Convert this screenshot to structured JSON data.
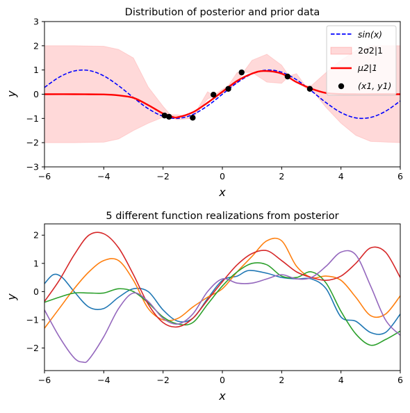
{
  "chart_data": [
    {
      "type": "line",
      "title": "Distribution of posterior and prior data",
      "xlabel": "x",
      "ylabel": "y",
      "xlim": [
        -6,
        6
      ],
      "ylim": [
        -3,
        3
      ],
      "xticks": [
        -6,
        -4,
        -2,
        0,
        2,
        4,
        6
      ],
      "yticks": [
        -3,
        -2,
        -1,
        0,
        1,
        2,
        3
      ],
      "legend_position": "top-right",
      "series": [
        {
          "name": "sin(x)",
          "kind": "dashed-line",
          "color": "#0000ff",
          "x": [
            -6,
            -5.5,
            -5,
            -4.5,
            -4,
            -3.5,
            -3,
            -2.5,
            -2,
            -1.5,
            -1,
            -0.5,
            0,
            0.5,
            1,
            1.5,
            2,
            2.5,
            3,
            3.5,
            4,
            4.5,
            5,
            5.5,
            6
          ],
          "y": [
            0.279,
            0.706,
            0.959,
            0.978,
            0.757,
            0.351,
            -0.141,
            -0.598,
            -0.909,
            -0.997,
            -0.841,
            -0.479,
            0,
            0.479,
            0.841,
            0.997,
            0.909,
            0.598,
            0.141,
            -0.351,
            -0.757,
            -0.978,
            -0.959,
            -0.706,
            -0.279
          ]
        },
        {
          "name": "2σ2|1",
          "kind": "band",
          "color": "#ff0000",
          "opacity": 0.15,
          "x": [
            -6,
            -5,
            -4,
            -3.5,
            -3,
            -2.5,
            -2,
            -1.75,
            -1.5,
            -1,
            -0.5,
            -0.3,
            0,
            0.2,
            0.5,
            0.7,
            1,
            1.5,
            2,
            2.25,
            2.5,
            2.8,
            3.0,
            3.5,
            4,
            4.5,
            5,
            6
          ],
          "lower": [
            -2,
            -2,
            -1.98,
            -1.85,
            -1.5,
            -1.2,
            -0.95,
            -0.98,
            -1.05,
            -1.0,
            -0.2,
            -0.08,
            0.02,
            0.2,
            0.45,
            0.9,
            0.9,
            0.5,
            0.45,
            0.75,
            0.6,
            0.25,
            0.2,
            -0.55,
            -1.2,
            -1.7,
            -1.95,
            -2
          ],
          "upper": [
            2,
            2,
            1.98,
            1.85,
            1.5,
            0.3,
            -0.5,
            -0.85,
            -0.85,
            -0.95,
            0.1,
            -0.05,
            0.2,
            0.35,
            0.9,
            0.9,
            1.4,
            1.65,
            1.2,
            0.75,
            0.85,
            0.35,
            0.35,
            0.9,
            1.4,
            1.8,
            2,
            2
          ]
        },
        {
          "name": "μ2|1",
          "kind": "line",
          "color": "#ff0000",
          "x": [
            -6,
            -5,
            -4,
            -3.5,
            -3,
            -2.5,
            -2,
            -1.7,
            -1.5,
            -1,
            -0.5,
            0,
            0.5,
            1,
            1.4,
            2,
            2.5,
            3,
            3.5,
            4,
            4.5,
            5,
            6
          ],
          "y": [
            0,
            0,
            -0.01,
            -0.05,
            -0.15,
            -0.45,
            -0.8,
            -0.93,
            -0.95,
            -0.75,
            -0.35,
            0.1,
            0.55,
            0.85,
            0.96,
            0.85,
            0.5,
            0.23,
            0.05,
            0.01,
            0,
            0,
            0
          ]
        },
        {
          "name": "(x1, y1)",
          "kind": "scatter",
          "color": "#000000",
          "x": [
            -1.95,
            -1.8,
            -1.0,
            -0.3,
            0.2,
            0.65,
            2.2,
            2.95
          ],
          "y": [
            -0.88,
            -0.93,
            -0.97,
            -0.02,
            0.22,
            0.9,
            0.73,
            0.22
          ]
        }
      ],
      "legend": [
        {
          "label": "sin(x)",
          "kind": "dashed-line",
          "color": "#0000ff"
        },
        {
          "label": "2σ2|1",
          "kind": "band",
          "color": "#ff0000"
        },
        {
          "label": "μ2|1",
          "kind": "line",
          "color": "#ff0000"
        },
        {
          "label": "(x1, y1)",
          "kind": "scatter",
          "color": "#000000"
        }
      ]
    },
    {
      "type": "line",
      "title": "5 different function realizations from posterior",
      "xlabel": "x",
      "ylabel": "y",
      "xlim": [
        -6,
        6
      ],
      "ylim": [
        -2.8,
        2.4
      ],
      "xticks": [
        -6,
        -4,
        -2,
        0,
        2,
        4,
        6
      ],
      "yticks": [
        -2,
        -1,
        0,
        1,
        2
      ],
      "series": [
        {
          "color": "#1f77b4",
          "x": [
            -6,
            -5.7,
            -5.4,
            -5.0,
            -4.5,
            -4.0,
            -3.5,
            -3.0,
            -2.5,
            -2.0,
            -1.5,
            -1.0,
            -0.5,
            0,
            0.5,
            0.9,
            1.5,
            2.0,
            2.5,
            3.0,
            3.5,
            4.0,
            4.5,
            5.0,
            5.5,
            6.0
          ],
          "y": [
            0.28,
            0.6,
            0.5,
            0.0,
            -0.55,
            -0.6,
            -0.2,
            0.1,
            0.0,
            -0.65,
            -1.05,
            -0.95,
            -0.25,
            0.4,
            0.55,
            0.75,
            0.65,
            0.5,
            0.45,
            0.45,
            0.1,
            -0.9,
            -1.05,
            -1.45,
            -1.45,
            -0.8
          ]
        },
        {
          "color": "#ff7f0e",
          "x": [
            -6,
            -5.5,
            -5.0,
            -4.5,
            -4.0,
            -3.5,
            -3.0,
            -2.5,
            -2.0,
            -1.5,
            -1.0,
            -0.5,
            0,
            0.5,
            1.0,
            1.5,
            2.0,
            2.5,
            3.0,
            3.5,
            4.0,
            4.5,
            5.0,
            5.5,
            6.0
          ],
          "y": [
            -1.3,
            -0.6,
            0.1,
            0.7,
            1.1,
            1.1,
            0.4,
            -0.6,
            -1.0,
            -0.95,
            -0.55,
            -0.2,
            0.1,
            0.7,
            1.25,
            1.8,
            1.8,
            0.9,
            0.5,
            0.55,
            0.4,
            -0.2,
            -0.85,
            -0.8,
            -0.15
          ]
        },
        {
          "color": "#2ca02c",
          "x": [
            -6,
            -5.5,
            -5.0,
            -4.5,
            -4.0,
            -3.5,
            -3.0,
            -2.5,
            -2.0,
            -1.5,
            -1.0,
            -0.5,
            0,
            0.5,
            1.0,
            1.5,
            2.0,
            2.5,
            3.0,
            3.5,
            4.0,
            4.5,
            5.0,
            5.5,
            6.0
          ],
          "y": [
            -0.38,
            -0.2,
            -0.05,
            -0.05,
            -0.05,
            0.1,
            0.0,
            -0.4,
            -0.9,
            -1.15,
            -1.1,
            -0.45,
            0.2,
            0.7,
            1.0,
            0.95,
            0.55,
            0.5,
            0.7,
            0.3,
            -0.7,
            -1.5,
            -1.9,
            -1.7,
            -1.4
          ]
        },
        {
          "color": "#d62728",
          "x": [
            -6,
            -5.5,
            -5.0,
            -4.5,
            -4.0,
            -3.5,
            -3.0,
            -2.5,
            -2.0,
            -1.5,
            -1.0,
            -0.5,
            0,
            0.5,
            1.0,
            1.5,
            2.0,
            2.5,
            3.0,
            3.5,
            4.0,
            4.5,
            5.0,
            5.5,
            6.0
          ],
          "y": [
            -0.35,
            0.4,
            1.3,
            2.0,
            2.05,
            1.55,
            0.6,
            -0.45,
            -1.1,
            -1.25,
            -0.95,
            -0.3,
            0.35,
            0.95,
            1.35,
            1.45,
            1.1,
            0.7,
            0.5,
            0.4,
            0.55,
            1.0,
            1.55,
            1.4,
            0.5
          ]
        },
        {
          "color": "#9467bd",
          "x": [
            -6,
            -5.5,
            -5.0,
            -4.7,
            -4.5,
            -4.0,
            -3.5,
            -3.0,
            -2.5,
            -2.0,
            -1.5,
            -1.0,
            -0.5,
            0,
            0.5,
            1.0,
            1.5,
            2.0,
            2.5,
            3.0,
            3.5,
            4.0,
            4.5,
            5.0,
            5.5,
            6.0
          ],
          "y": [
            -0.65,
            -1.6,
            -2.35,
            -2.5,
            -2.4,
            -1.6,
            -0.6,
            -0.05,
            -0.35,
            -0.95,
            -1.15,
            -0.8,
            0.0,
            0.45,
            0.3,
            0.3,
            0.45,
            0.6,
            0.45,
            0.5,
            0.9,
            1.4,
            1.3,
            0.2,
            -1.0,
            -1.55
          ]
        }
      ]
    }
  ]
}
